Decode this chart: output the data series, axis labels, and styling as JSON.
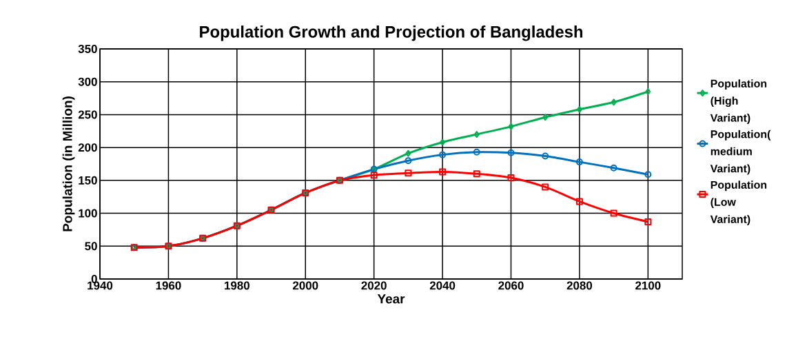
{
  "chart_data": {
    "type": "line",
    "title": "Population Growth and Projection of Bangladesh",
    "xlabel": "Year",
    "ylabel": "Population (in Million)",
    "x": [
      1950,
      1960,
      1970,
      1980,
      1990,
      2000,
      2010,
      2020,
      2030,
      2040,
      2050,
      2060,
      2070,
      2080,
      2090,
      2100
    ],
    "series": [
      {
        "name": "Population (High Variant)",
        "color": "#00b050",
        "marker": "diamond",
        "values": [
          48,
          50,
          62,
          81,
          105,
          131,
          150,
          167,
          191,
          208,
          220,
          232,
          246,
          258,
          269,
          285
        ]
      },
      {
        "name": "Population( medium Variant)",
        "color": "#0070c0",
        "marker": "circle",
        "values": [
          48,
          50,
          62,
          81,
          105,
          131,
          150,
          167,
          180,
          189,
          193,
          192,
          187,
          178,
          169,
          159
        ]
      },
      {
        "name": "Population (Low Variant)",
        "color": "#ff0000",
        "marker": "square",
        "values": [
          48,
          50,
          62,
          81,
          105,
          131,
          150,
          158,
          161,
          163,
          160,
          154,
          140,
          118,
          100,
          87
        ]
      }
    ],
    "xlim": [
      1940,
      2110
    ],
    "ylim": [
      0,
      350
    ],
    "xticks": [
      1940,
      1960,
      1980,
      2000,
      2020,
      2040,
      2060,
      2080,
      2100
    ],
    "yticks": [
      0,
      50,
      100,
      150,
      200,
      250,
      300,
      350
    ],
    "grid": true,
    "legend": "right"
  }
}
